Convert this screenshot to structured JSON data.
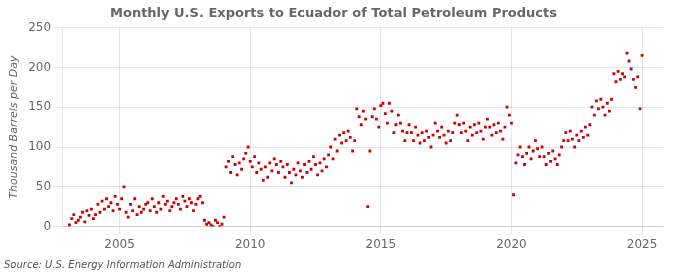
{
  "chart_data": {
    "type": "scatter",
    "title": "Monthly U.S. Exports to Ecuador of Total Petroleum Products",
    "ylabel": "Thousand Barrels per Day",
    "source": "Source: U.S. Energy Information Administration",
    "color": "#CC0000",
    "marker": "square",
    "grid": true,
    "xlim": [
      2002.8,
      2025.8
    ],
    "xticks": [
      2005,
      2010,
      2015,
      2020,
      2025
    ],
    "ylim": [
      0,
      250
    ],
    "yticks": [
      0,
      50,
      100,
      150,
      200,
      250
    ],
    "x": [
      2003.08,
      2003.17,
      2003.25,
      2003.33,
      2003.42,
      2003.5,
      2003.58,
      2003.67,
      2003.75,
      2003.83,
      2003.92,
      2004.0,
      2004.08,
      2004.17,
      2004.25,
      2004.33,
      2004.42,
      2004.5,
      2004.58,
      2004.67,
      2004.75,
      2004.83,
      2004.92,
      2005.0,
      2005.08,
      2005.17,
      2005.25,
      2005.33,
      2005.42,
      2005.5,
      2005.58,
      2005.67,
      2005.75,
      2005.83,
      2005.92,
      2006.0,
      2006.08,
      2006.17,
      2006.25,
      2006.33,
      2006.42,
      2006.5,
      2006.58,
      2006.67,
      2006.75,
      2006.83,
      2006.92,
      2007.0,
      2007.08,
      2007.17,
      2007.25,
      2007.33,
      2007.42,
      2007.5,
      2007.58,
      2007.67,
      2007.75,
      2007.83,
      2007.92,
      2008.0,
      2008.08,
      2008.17,
      2008.25,
      2008.33,
      2008.42,
      2008.5,
      2008.58,
      2008.67,
      2008.75,
      2008.83,
      2008.92,
      2009.0,
      2009.08,
      2009.17,
      2009.25,
      2009.33,
      2009.42,
      2009.5,
      2009.58,
      2009.67,
      2009.75,
      2009.83,
      2009.92,
      2010.0,
      2010.08,
      2010.17,
      2010.25,
      2010.33,
      2010.42,
      2010.5,
      2010.58,
      2010.67,
      2010.75,
      2010.83,
      2010.92,
      2011.0,
      2011.08,
      2011.17,
      2011.25,
      2011.33,
      2011.42,
      2011.5,
      2011.58,
      2011.67,
      2011.75,
      2011.83,
      2011.92,
      2012.0,
      2012.08,
      2012.17,
      2012.25,
      2012.33,
      2012.42,
      2012.5,
      2012.58,
      2012.67,
      2012.75,
      2012.83,
      2012.92,
      2013.0,
      2013.08,
      2013.17,
      2013.25,
      2013.33,
      2013.42,
      2013.5,
      2013.58,
      2013.67,
      2013.75,
      2013.83,
      2013.92,
      2014.0,
      2014.08,
      2014.17,
      2014.25,
      2014.33,
      2014.42,
      2014.5,
      2014.58,
      2014.67,
      2014.75,
      2014.83,
      2014.92,
      2015.0,
      2015.08,
      2015.17,
      2015.25,
      2015.33,
      2015.42,
      2015.5,
      2015.58,
      2015.67,
      2015.75,
      2015.83,
      2015.92,
      2016.0,
      2016.08,
      2016.17,
      2016.25,
      2016.33,
      2016.42,
      2016.5,
      2016.58,
      2016.67,
      2016.75,
      2016.83,
      2016.92,
      2017.0,
      2017.08,
      2017.17,
      2017.25,
      2017.33,
      2017.42,
      2017.5,
      2017.58,
      2017.67,
      2017.75,
      2017.83,
      2017.92,
      2018.0,
      2018.08,
      2018.17,
      2018.25,
      2018.33,
      2018.42,
      2018.5,
      2018.58,
      2018.67,
      2018.75,
      2018.83,
      2018.92,
      2019.0,
      2019.08,
      2019.17,
      2019.25,
      2019.33,
      2019.42,
      2019.5,
      2019.58,
      2019.67,
      2019.75,
      2019.83,
      2019.92,
      2020.0,
      2020.08,
      2020.17,
      2020.25,
      2020.33,
      2020.42,
      2020.5,
      2020.58,
      2020.67,
      2020.75,
      2020.83,
      2020.92,
      2021.0,
      2021.08,
      2021.17,
      2021.25,
      2021.33,
      2021.42,
      2021.5,
      2021.58,
      2021.67,
      2021.75,
      2021.83,
      2021.92,
      2022.0,
      2022.08,
      2022.17,
      2022.25,
      2022.33,
      2022.42,
      2022.5,
      2022.58,
      2022.67,
      2022.75,
      2022.83,
      2022.92,
      2023.0,
      2023.08,
      2023.17,
      2023.25,
      2023.33,
      2023.42,
      2023.5,
      2023.58,
      2023.67,
      2023.75,
      2023.83,
      2023.92,
      2024.0,
      2024.08,
      2024.17,
      2024.25,
      2024.33,
      2024.42,
      2024.5,
      2024.58,
      2024.67,
      2024.75,
      2024.83,
      2024.92,
      2025.0
    ],
    "values": [
      2,
      10,
      15,
      5,
      8,
      12,
      18,
      6,
      20,
      14,
      22,
      10,
      15,
      28,
      18,
      32,
      22,
      35,
      25,
      30,
      20,
      38,
      28,
      22,
      35,
      50,
      18,
      12,
      28,
      20,
      35,
      15,
      25,
      18,
      22,
      28,
      30,
      20,
      35,
      25,
      18,
      30,
      22,
      38,
      28,
      32,
      20,
      25,
      30,
      35,
      28,
      22,
      38,
      32,
      25,
      35,
      30,
      20,
      28,
      35,
      38,
      30,
      8,
      3,
      5,
      2,
      0,
      8,
      5,
      0,
      3,
      12,
      75,
      82,
      68,
      88,
      78,
      65,
      80,
      72,
      85,
      92,
      100,
      82,
      75,
      88,
      68,
      80,
      72,
      58,
      75,
      62,
      80,
      70,
      85,
      78,
      68,
      82,
      75,
      62,
      78,
      68,
      55,
      72,
      65,
      80,
      70,
      62,
      78,
      68,
      82,
      72,
      88,
      78,
      65,
      80,
      70,
      85,
      75,
      90,
      100,
      85,
      110,
      95,
      115,
      105,
      118,
      108,
      120,
      112,
      95,
      108,
      148,
      138,
      128,
      145,
      135,
      25,
      95,
      138,
      148,
      135,
      125,
      152,
      155,
      142,
      130,
      155,
      145,
      118,
      128,
      140,
      130,
      120,
      108,
      118,
      128,
      118,
      108,
      125,
      115,
      105,
      118,
      108,
      120,
      112,
      100,
      115,
      130,
      120,
      112,
      125,
      115,
      105,
      120,
      108,
      118,
      130,
      140,
      128,
      118,
      130,
      120,
      108,
      125,
      115,
      128,
      118,
      130,
      120,
      110,
      125,
      135,
      125,
      115,
      128,
      118,
      130,
      120,
      110,
      125,
      150,
      140,
      130,
      40,
      80,
      90,
      100,
      88,
      78,
      92,
      100,
      85,
      95,
      108,
      98,
      88,
      100,
      88,
      78,
      92,
      82,
      95,
      85,
      78,
      90,
      100,
      108,
      118,
      108,
      120,
      110,
      100,
      115,
      108,
      120,
      112,
      125,
      115,
      128,
      150,
      140,
      158,
      148,
      160,
      150,
      140,
      155,
      145,
      160,
      192,
      182,
      195,
      185,
      192,
      188,
      218,
      208,
      198,
      185,
      175,
      188,
      148,
      215
    ]
  }
}
